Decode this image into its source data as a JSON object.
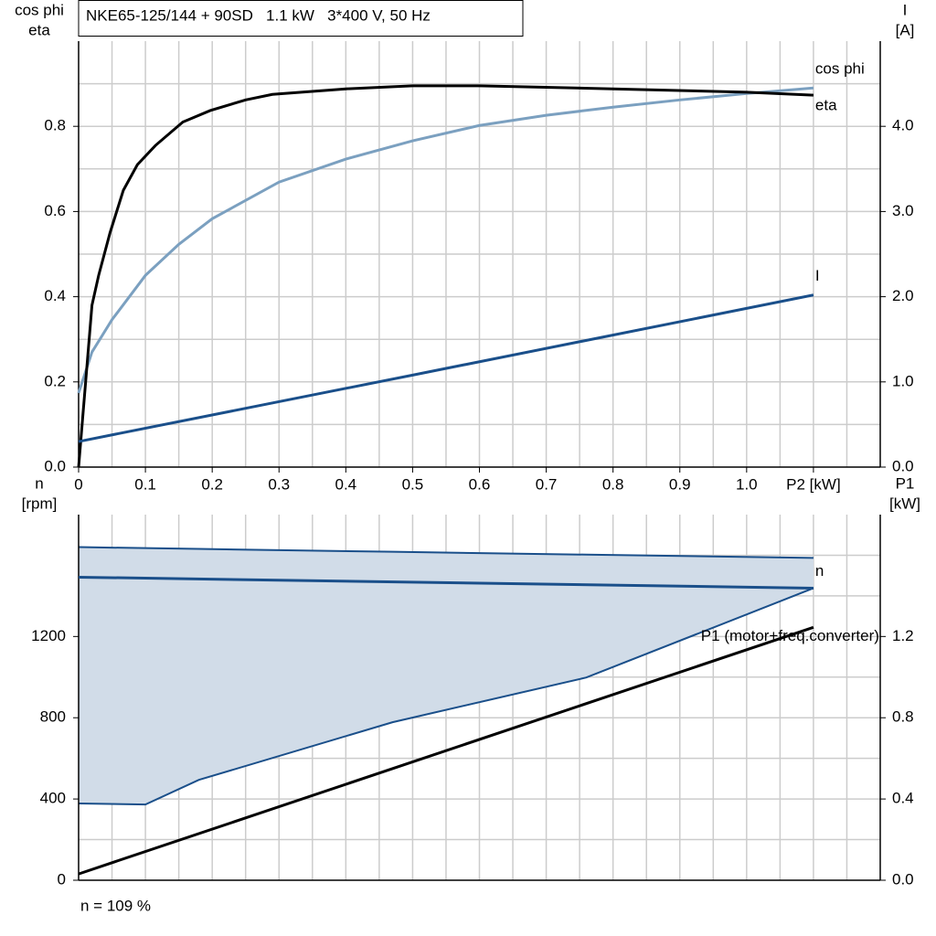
{
  "chart_data": [
    {
      "type": "line",
      "title": "NKE65-125/144 + 90SD   1.1 kW   3*400 V, 50 Hz",
      "ylabel": [
        "cos phi",
        "eta"
      ],
      "y2label": [
        "I",
        "[A]"
      ],
      "xlim": [
        0,
        1.2
      ],
      "xticks": [
        0,
        0.1,
        0.2,
        0.3,
        0.4,
        0.5,
        0.6,
        0.7,
        0.8,
        0.9,
        {
          "value": 1.0,
          "label": "1.0"
        },
        {
          "value": 1.1,
          "label": "P2 [kW]"
        }
      ],
      "xgrid": [
        0.05,
        0.1,
        0.15,
        0.2,
        0.25,
        0.3,
        0.35,
        0.4,
        0.45,
        0.5,
        0.55,
        0.6,
        0.65,
        0.7,
        0.75,
        0.8,
        0.85,
        0.9,
        0.95,
        1.0,
        1.05,
        1.1,
        1.15
      ],
      "ylim": [
        0,
        1.0
      ],
      "yticks": [
        {
          "value": 0,
          "label": "0.0"
        },
        0.2,
        0.4,
        0.6,
        0.8
      ],
      "ygrid": [
        0.1,
        0.2,
        0.3,
        0.4,
        0.5,
        0.6,
        0.7,
        0.8,
        0.9
      ],
      "y2lim": [
        0,
        5.0
      ],
      "y2ticks": [
        {
          "value": 0,
          "label": "0.0"
        },
        {
          "value": 1,
          "label": "1.0"
        },
        {
          "value": 2,
          "label": "2.0"
        },
        {
          "value": 3,
          "label": "3.0"
        },
        {
          "value": 4,
          "label": "4.0"
        }
      ],
      "series": [
        {
          "name": "cos phi",
          "color": "#7ba0c0",
          "x": [
            0,
            0.02,
            0.05,
            0.1,
            0.15,
            0.2,
            0.3,
            0.4,
            0.5,
            0.6,
            0.7,
            0.8,
            0.9,
            1.0,
            1.1
          ],
          "values": [
            0.174,
            0.27,
            0.346,
            0.45,
            0.523,
            0.583,
            0.669,
            0.723,
            0.766,
            0.802,
            0.826,
            0.845,
            0.862,
            0.877,
            0.89
          ]
        },
        {
          "name": "eta",
          "color": "#000000",
          "x": [
            0,
            0.02,
            0.03,
            0.047,
            0.067,
            0.088,
            0.115,
            0.156,
            0.197,
            0.25,
            0.29,
            0.4,
            0.5,
            0.6,
            0.8,
            1.0,
            1.1
          ],
          "values": [
            0,
            0.38,
            0.45,
            0.55,
            0.65,
            0.71,
            0.755,
            0.81,
            0.837,
            0.862,
            0.875,
            0.888,
            0.895,
            0.895,
            0.888,
            0.88,
            0.873
          ]
        },
        {
          "name": "I",
          "color": "#1a4f8a",
          "axis": "y2",
          "x": [
            0,
            0.5,
            1.1
          ],
          "values": [
            0.3,
            1.08,
            2.02
          ]
        }
      ]
    },
    {
      "type": "line",
      "ylabel": [
        "n",
        "[rpm]"
      ],
      "y2label": [
        "P1",
        "[kW]"
      ],
      "note": "n = 109 %",
      "xlim": [
        0,
        1.2
      ],
      "xgrid": [
        0.05,
        0.1,
        0.15,
        0.2,
        0.25,
        0.3,
        0.35,
        0.4,
        0.45,
        0.5,
        0.55,
        0.6,
        0.65,
        0.7,
        0.75,
        0.8,
        0.85,
        0.9,
        0.95,
        1.0,
        1.05,
        1.1,
        1.15
      ],
      "ylim": [
        0,
        1800
      ],
      "yticks": [
        0,
        400,
        800,
        1200
      ],
      "ygrid": [
        200,
        400,
        600,
        800,
        1000,
        1200,
        1400,
        1600
      ],
      "y2lim": [
        0,
        1.8
      ],
      "y2ticks": [
        {
          "value": 0,
          "label": "0.0"
        },
        0.4,
        0.8,
        1.2
      ],
      "band": {
        "color": "#d1dce8",
        "edge": "#1a4f8a",
        "x": [
          0,
          0.1,
          0.18,
          0.47,
          0.76,
          1.1
        ],
        "lower": [
          378,
          373,
          494,
          778,
          998,
          1438
        ],
        "upper": [
          1640,
          1635,
          1631,
          1617,
          1603,
          1587
        ]
      },
      "series": [
        {
          "name": "n",
          "color": "#1a4f8a",
          "x": [
            0,
            1.1
          ],
          "values": [
            1492,
            1438
          ]
        },
        {
          "name": "P1 (motor+freq.converter)",
          "color": "#000000",
          "axis": "y2",
          "x": [
            0,
            1.1
          ],
          "values": [
            0.031,
            1.245
          ]
        }
      ]
    }
  ]
}
